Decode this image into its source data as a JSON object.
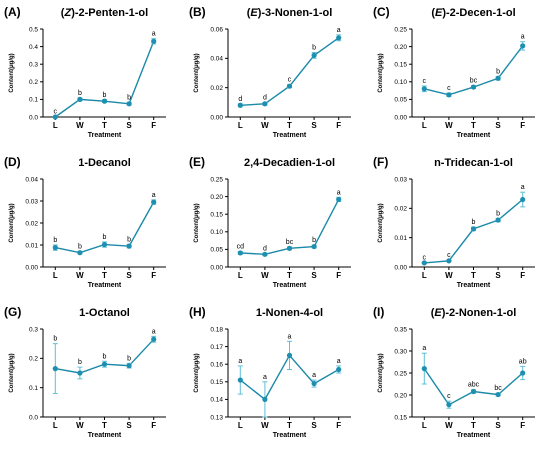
{
  "figure": {
    "line_color": "#1a8aa8",
    "marker_color": "#1e8fb0",
    "error_color": "#5ec0d6",
    "axis_color": "#000000"
  },
  "chart_data": [
    {
      "panel": "(A)",
      "title": "(Z)-2-Penten-1-ol",
      "type": "line",
      "categories": [
        "L",
        "W",
        "T",
        "S",
        "F"
      ],
      "values": [
        0.0,
        0.1,
        0.09,
        0.075,
        0.43
      ],
      "errors": [
        0.004,
        0.008,
        0.008,
        0.008,
        0.015
      ],
      "sig": [
        "c",
        "b",
        "b",
        "b",
        "a"
      ],
      "ylim": [
        0,
        0.5
      ],
      "yticks": [
        0.0,
        0.1,
        0.2,
        0.3,
        0.4,
        0.5
      ],
      "ytick_labels": [
        "0.0",
        "0.1",
        "0.2",
        "0.3",
        "0.4",
        "0.5"
      ],
      "xlabel": "Treatment",
      "ylabel": "Content(μg/g)"
    },
    {
      "panel": "(B)",
      "title": "(E)-3-Nonen-1-ol",
      "type": "line",
      "categories": [
        "L",
        "W",
        "T",
        "S",
        "F"
      ],
      "values": [
        0.008,
        0.009,
        0.021,
        0.042,
        0.054
      ],
      "errors": [
        0.001,
        0.001,
        0.001,
        0.002,
        0.002
      ],
      "sig": [
        "d",
        "d",
        "c",
        "b",
        "a"
      ],
      "ylim": [
        0,
        0.06
      ],
      "yticks": [
        0.0,
        0.02,
        0.04,
        0.06
      ],
      "ytick_labels": [
        "0.00",
        "0.02",
        "0.04",
        "0.06"
      ],
      "xlabel": "Treatment",
      "ylabel": "Content(μg/g)"
    },
    {
      "panel": "(C)",
      "title": "(E)-2-Decen-1-ol",
      "type": "line",
      "categories": [
        "L",
        "W",
        "T",
        "S",
        "F"
      ],
      "values": [
        0.08,
        0.063,
        0.085,
        0.11,
        0.202
      ],
      "errors": [
        0.008,
        0.005,
        0.004,
        0.005,
        0.012
      ],
      "sig": [
        "c",
        "c",
        "bc",
        "b",
        "a"
      ],
      "ylim": [
        0,
        0.25
      ],
      "yticks": [
        0.0,
        0.05,
        0.1,
        0.15,
        0.2,
        0.25
      ],
      "ytick_labels": [
        "0.00",
        "0.05",
        "0.10",
        "0.15",
        "0.20",
        "0.25"
      ],
      "xlabel": "Treatment",
      "ylabel": "Content(μg/g)"
    },
    {
      "panel": "(D)",
      "title": "1-Decanol",
      "type": "line",
      "categories": [
        "L",
        "W",
        "T",
        "S",
        "F"
      ],
      "values": [
        0.0088,
        0.0065,
        0.0102,
        0.0095,
        0.0295
      ],
      "errors": [
        0.0012,
        0.0006,
        0.0012,
        0.0008,
        0.001
      ],
      "sig": [
        "b",
        "b",
        "b",
        "b",
        "a"
      ],
      "ylim": [
        0,
        0.04
      ],
      "yticks": [
        0.0,
        0.01,
        0.02,
        0.03,
        0.04
      ],
      "ytick_labels": [
        "0.00",
        "0.01",
        "0.02",
        "0.03",
        "0.04"
      ],
      "xlabel": "Treatment",
      "ylabel": "Content(μg/g)"
    },
    {
      "panel": "(E)",
      "title": "2,4-Decadien-1-ol",
      "type": "line",
      "categories": [
        "L",
        "W",
        "T",
        "S",
        "F"
      ],
      "values": [
        0.04,
        0.036,
        0.053,
        0.058,
        0.192
      ],
      "errors": [
        0.004,
        0.003,
        0.004,
        0.004,
        0.006
      ],
      "sig": [
        "cd",
        "d",
        "bc",
        "b",
        "a"
      ],
      "ylim": [
        0,
        0.25
      ],
      "yticks": [
        0.0,
        0.05,
        0.1,
        0.15,
        0.2,
        0.25
      ],
      "ytick_labels": [
        "0.00",
        "0.05",
        "0.10",
        "0.15",
        "0.20",
        "0.25"
      ],
      "xlabel": "Treatment",
      "ylabel": "Content(μg/g)"
    },
    {
      "panel": "(F)",
      "title": "n-Tridecan-1-ol",
      "type": "line",
      "categories": [
        "L",
        "W",
        "T",
        "S",
        "F"
      ],
      "values": [
        0.0014,
        0.0021,
        0.013,
        0.016,
        0.023
      ],
      "errors": [
        0.0002,
        0.0003,
        0.0006,
        0.0006,
        0.0025
      ],
      "sig": [
        "c",
        "c",
        "b",
        "b",
        "a"
      ],
      "ylim": [
        0,
        0.03
      ],
      "yticks": [
        0.0,
        0.01,
        0.02,
        0.03
      ],
      "ytick_labels": [
        "0.00",
        "0.01",
        "0.02",
        "0.03"
      ],
      "xlabel": "Treatment",
      "ylabel": "Content(μg/g)"
    },
    {
      "panel": "(G)",
      "title": "1-Octanol",
      "type": "line",
      "categories": [
        "L",
        "W",
        "T",
        "S",
        "F"
      ],
      "values": [
        0.165,
        0.15,
        0.18,
        0.175,
        0.265
      ],
      "errors": [
        0.085,
        0.02,
        0.01,
        0.008,
        0.01
      ],
      "sig": [
        "b",
        "b",
        "b",
        "b",
        "a"
      ],
      "ylim": [
        0,
        0.3
      ],
      "yticks": [
        0.0,
        0.1,
        0.2,
        0.3
      ],
      "ytick_labels": [
        "0.0",
        "0.1",
        "0.2",
        "0.3"
      ],
      "xlabel": "Treatment",
      "ylabel": "Content(μg/g)"
    },
    {
      "panel": "(H)",
      "title": "1-Nonen-4-ol",
      "type": "line",
      "categories": [
        "L",
        "W",
        "T",
        "S",
        "F"
      ],
      "values": [
        0.151,
        0.14,
        0.165,
        0.149,
        0.157
      ],
      "errors": [
        0.008,
        0.01,
        0.008,
        0.002,
        0.002
      ],
      "sig": [
        "a",
        "a",
        "a",
        "a",
        "a"
      ],
      "ylim": [
        0.13,
        0.18
      ],
      "yticks": [
        0.13,
        0.14,
        0.15,
        0.16,
        0.17,
        0.18
      ],
      "ytick_labels": [
        "0.13",
        "0.14",
        "0.15",
        "0.16",
        "0.17",
        "0.18"
      ],
      "xlabel": "Treatment",
      "ylabel": "Content(μg/g)"
    },
    {
      "panel": "(I)",
      "title": "(E)-2-Nonen-1-ol",
      "type": "line",
      "categories": [
        "L",
        "W",
        "T",
        "S",
        "F"
      ],
      "values": [
        0.26,
        0.178,
        0.208,
        0.201,
        0.25
      ],
      "errors": [
        0.035,
        0.008,
        0.004,
        0.003,
        0.015
      ],
      "sig": [
        "a",
        "c",
        "abc",
        "bc",
        "ab"
      ],
      "ylim": [
        0.15,
        0.35
      ],
      "yticks": [
        0.15,
        0.2,
        0.25,
        0.3,
        0.35
      ],
      "ytick_labels": [
        "0.15",
        "0.20",
        "0.25",
        "0.30",
        "0.35"
      ],
      "xlabel": "Treatment",
      "ylabel": "Content(μg/g)"
    }
  ]
}
